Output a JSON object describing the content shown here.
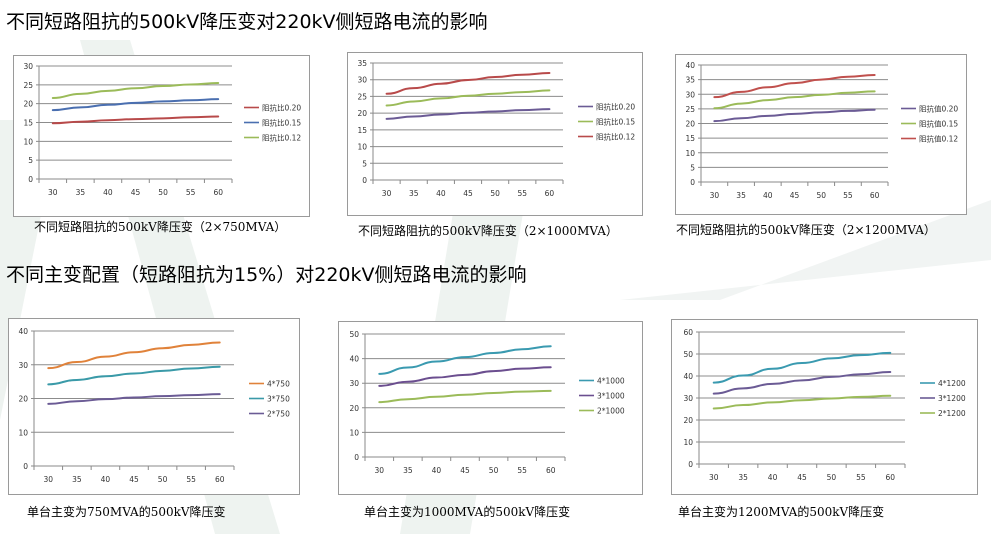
{
  "headings": {
    "top": "不同短路阻抗的500kV降压变对220kV侧短路电流的影响",
    "bottom": "不同主变配置（短路阻抗为15%）对220kV侧短路电流的影响"
  },
  "chart_data": [
    {
      "type": "line",
      "title": "",
      "caption": "不同短路阻抗的500kV降压变（2×750MVA）",
      "x": [
        30,
        35,
        40,
        45,
        50,
        55,
        60
      ],
      "x_ticks": [
        "30",
        "35",
        "40",
        "45",
        "50",
        "55",
        "60"
      ],
      "ylim": [
        0,
        30
      ],
      "y_ticks": [
        "0",
        "5",
        "10",
        "15",
        "20",
        "25",
        "30"
      ],
      "grid": true,
      "legend": "right",
      "series": [
        {
          "name": "阻抗比0.20",
          "color": "#B84A4A",
          "values": [
            14.8,
            15.2,
            15.6,
            15.9,
            16.1,
            16.4,
            16.6
          ]
        },
        {
          "name": "阻抗比0.15",
          "color": "#4A6FB0",
          "values": [
            18.3,
            19.0,
            19.7,
            20.2,
            20.6,
            20.9,
            21.2
          ]
        },
        {
          "name": "阻抗比0.12",
          "color": "#9BBB59",
          "values": [
            21.5,
            22.6,
            23.4,
            24.1,
            24.7,
            25.1,
            25.5
          ]
        }
      ]
    },
    {
      "type": "line",
      "title": "",
      "caption": "不同短路阻抗的500kV降压变（2×1000MVA）",
      "x": [
        30,
        35,
        40,
        45,
        50,
        55,
        60
      ],
      "x_ticks": [
        "30",
        "35",
        "40",
        "45",
        "50",
        "55",
        "60"
      ],
      "ylim": [
        0,
        35
      ],
      "y_ticks": [
        "0",
        "5",
        "10",
        "15",
        "20",
        "25",
        "30",
        "35"
      ],
      "grid": true,
      "legend": "right",
      "series": [
        {
          "name": "阻抗比0.20",
          "color": "#6B5B95",
          "values": [
            18.3,
            19.0,
            19.6,
            20.1,
            20.5,
            20.9,
            21.2
          ]
        },
        {
          "name": "阻抗比0.15",
          "color": "#9BBB59",
          "values": [
            22.3,
            23.5,
            24.4,
            25.2,
            25.8,
            26.3,
            26.8
          ]
        },
        {
          "name": "阻抗比0.12",
          "color": "#B84A4A",
          "values": [
            25.8,
            27.5,
            28.8,
            29.9,
            30.8,
            31.5,
            32.0
          ]
        }
      ]
    },
    {
      "type": "line",
      "title": "",
      "caption": "不同短路阻抗的500kV降压变（2×1200MVA）",
      "x": [
        30,
        35,
        40,
        45,
        50,
        55,
        60
      ],
      "x_ticks": [
        "30",
        "35",
        "40",
        "45",
        "50",
        "55",
        "60"
      ],
      "ylim": [
        0,
        40
      ],
      "y_ticks": [
        "0",
        "5",
        "10",
        "15",
        "20",
        "25",
        "30",
        "35",
        "40"
      ],
      "grid": true,
      "legend": "right",
      "series": [
        {
          "name": "阻抗值0.20",
          "color": "#6B5B95",
          "values": [
            20.8,
            21.8,
            22.6,
            23.3,
            23.8,
            24.3,
            24.7
          ]
        },
        {
          "name": "阻抗值0.15",
          "color": "#9BBB59",
          "values": [
            25.2,
            26.8,
            28.0,
            29.0,
            29.8,
            30.5,
            31.0
          ]
        },
        {
          "name": "阻抗值0.12",
          "color": "#C0504D",
          "values": [
            29.0,
            30.8,
            32.4,
            33.8,
            35.0,
            36.0,
            36.6
          ]
        }
      ]
    },
    {
      "type": "line",
      "title": "",
      "caption": "单台主变为750MVA的500kV降压变",
      "x": [
        30,
        35,
        40,
        45,
        50,
        55,
        60
      ],
      "x_ticks": [
        "30",
        "35",
        "40",
        "45",
        "50",
        "55",
        "60"
      ],
      "ylim": [
        0,
        40
      ],
      "y_ticks": [
        "0",
        "10",
        "20",
        "30",
        "40"
      ],
      "grid": true,
      "legend": "right",
      "series": [
        {
          "name": "4*750",
          "color": "#E0823A",
          "values": [
            29.0,
            30.8,
            32.4,
            33.7,
            34.9,
            35.9,
            36.6
          ]
        },
        {
          "name": "3*750",
          "color": "#3A9AA8",
          "values": [
            24.2,
            25.5,
            26.6,
            27.4,
            28.2,
            28.9,
            29.4
          ]
        },
        {
          "name": "2*750",
          "color": "#6B5B95",
          "values": [
            18.4,
            19.2,
            19.8,
            20.3,
            20.7,
            21.0,
            21.3
          ]
        }
      ]
    },
    {
      "type": "line",
      "title": "",
      "caption": "单台主变为1000MVA的500kV降压变",
      "x": [
        30,
        35,
        40,
        45,
        50,
        55,
        60
      ],
      "x_ticks": [
        "30",
        "35",
        "40",
        "45",
        "50",
        "55",
        "60"
      ],
      "ylim": [
        0,
        50
      ],
      "y_ticks": [
        "0",
        "10",
        "20",
        "30",
        "40",
        "50"
      ],
      "grid": true,
      "legend": "right",
      "series": [
        {
          "name": "4*1000",
          "color": "#3A9AB0",
          "values": [
            33.8,
            36.4,
            38.8,
            40.6,
            42.3,
            43.8,
            45.0
          ]
        },
        {
          "name": "3*1000",
          "color": "#6B4E8F",
          "values": [
            28.9,
            30.6,
            32.3,
            33.4,
            34.9,
            35.9,
            36.5
          ]
        },
        {
          "name": "2*1000",
          "color": "#9BBB59",
          "values": [
            22.3,
            23.5,
            24.5,
            25.3,
            26.0,
            26.6,
            26.9
          ]
        }
      ]
    },
    {
      "type": "line",
      "title": "",
      "caption": "单台主变为1200MVA的500kV降压变",
      "x": [
        30,
        35,
        40,
        45,
        50,
        55,
        60
      ],
      "x_ticks": [
        "30",
        "35",
        "40",
        "45",
        "50",
        "55",
        "60"
      ],
      "ylim": [
        0,
        60
      ],
      "y_ticks": [
        "0",
        "10",
        "20",
        "30",
        "40",
        "50",
        "60"
      ],
      "grid": true,
      "legend": "right",
      "series": [
        {
          "name": "4*1200",
          "color": "#3A9AB0",
          "values": [
            37.0,
            40.2,
            43.3,
            45.9,
            48.0,
            49.5,
            50.5
          ]
        },
        {
          "name": "3*1200",
          "color": "#6B5B95",
          "values": [
            32.0,
            34.4,
            36.4,
            38.0,
            39.6,
            40.8,
            41.8
          ]
        },
        {
          "name": "2*1200",
          "color": "#9BBB59",
          "values": [
            25.2,
            26.8,
            28.0,
            29.0,
            29.8,
            30.5,
            31.0
          ]
        }
      ]
    }
  ]
}
